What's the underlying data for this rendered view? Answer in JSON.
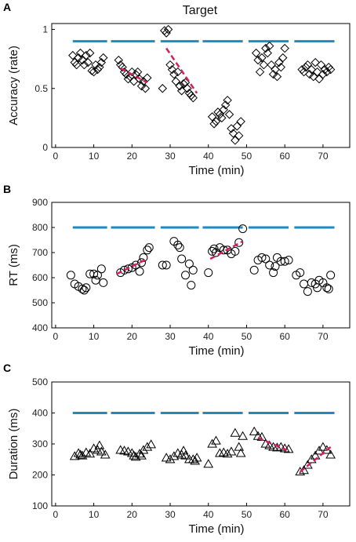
{
  "figure_title": "Target",
  "colors": {
    "reference": "#1f8ac0",
    "trend": "#d81b60",
    "marker": "#000000"
  },
  "chart_data": [
    {
      "panel": "A",
      "type": "scatter",
      "marker": "diamond",
      "xlabel": "Time (min)",
      "ylabel": "Accuracy (rate)",
      "xlim": [
        -1,
        77
      ],
      "ylim": [
        0,
        1.05
      ],
      "xticks": [
        0,
        10,
        20,
        30,
        40,
        50,
        60,
        70
      ],
      "yticks": [
        0,
        0.5,
        1
      ],
      "ytick_labels": [
        "0",
        "0.5",
        "1"
      ],
      "reference_segments": [
        {
          "x": [
            4.5,
            13.5
          ],
          "y": 0.9
        },
        {
          "x": [
            14.5,
            26
          ],
          "y": 0.9
        },
        {
          "x": [
            27.5,
            37.5
          ],
          "y": 0.9
        },
        {
          "x": [
            38.5,
            49
          ],
          "y": 0.9
        },
        {
          "x": [
            50.5,
            61
          ],
          "y": 0.9
        },
        {
          "x": [
            62.5,
            73
          ],
          "y": 0.9
        }
      ],
      "trend_segments": [
        {
          "x": [
            17,
            24
          ],
          "y": [
            0.67,
            0.55
          ]
        },
        {
          "x": [
            29,
            37
          ],
          "y": [
            0.84,
            0.46
          ]
        }
      ],
      "points": [
        [
          4.5,
          0.78
        ],
        [
          5,
          0.72
        ],
        [
          5.5,
          0.7
        ],
        [
          6,
          0.76
        ],
        [
          6.5,
          0.8
        ],
        [
          7,
          0.74
        ],
        [
          7.5,
          0.7
        ],
        [
          8,
          0.78
        ],
        [
          8.5,
          0.72
        ],
        [
          9,
          0.8
        ],
        [
          9.5,
          0.65
        ],
        [
          10,
          0.64
        ],
        [
          10.5,
          0.7
        ],
        [
          11,
          0.66
        ],
        [
          11.5,
          0.68
        ],
        [
          12,
          0.72
        ],
        [
          12.5,
          0.76
        ],
        [
          16.5,
          0.74
        ],
        [
          17,
          0.7
        ],
        [
          17.5,
          0.68
        ],
        [
          18,
          0.64
        ],
        [
          18.5,
          0.62
        ],
        [
          19,
          0.58
        ],
        [
          19.5,
          0.6
        ],
        [
          20,
          0.64
        ],
        [
          20.5,
          0.56
        ],
        [
          21,
          0.62
        ],
        [
          21.5,
          0.64
        ],
        [
          22,
          0.58
        ],
        [
          22.5,
          0.52
        ],
        [
          23,
          0.56
        ],
        [
          23.5,
          0.5
        ],
        [
          24,
          0.59
        ],
        [
          28,
          0.5
        ],
        [
          28.5,
          0.99
        ],
        [
          29,
          0.97
        ],
        [
          29.5,
          1.0
        ],
        [
          30,
          0.7
        ],
        [
          30.5,
          0.66
        ],
        [
          31,
          0.62
        ],
        [
          31.5,
          0.56
        ],
        [
          32,
          0.64
        ],
        [
          32.5,
          0.52
        ],
        [
          33,
          0.48
        ],
        [
          33.5,
          0.54
        ],
        [
          34,
          0.55
        ],
        [
          34.5,
          0.5
        ],
        [
          35,
          0.46
        ],
        [
          35.5,
          0.44
        ],
        [
          36,
          0.42
        ],
        [
          41,
          0.26
        ],
        [
          41.5,
          0.2
        ],
        [
          42,
          0.22
        ],
        [
          42.5,
          0.3
        ],
        [
          43,
          0.28
        ],
        [
          43.5,
          0.25
        ],
        [
          44,
          0.32
        ],
        [
          44.5,
          0.36
        ],
        [
          45,
          0.4
        ],
        [
          45.5,
          0.28
        ],
        [
          46,
          0.16
        ],
        [
          46.5,
          0.12
        ],
        [
          47,
          0.06
        ],
        [
          47.5,
          0.18
        ],
        [
          48,
          0.1
        ],
        [
          48.5,
          0.22
        ],
        [
          52.5,
          0.8
        ],
        [
          53,
          0.74
        ],
        [
          53.5,
          0.64
        ],
        [
          54,
          0.76
        ],
        [
          54.5,
          0.7
        ],
        [
          55,
          0.84
        ],
        [
          55.5,
          0.8
        ],
        [
          56,
          0.86
        ],
        [
          56.5,
          0.7
        ],
        [
          57,
          0.62
        ],
        [
          57.5,
          0.66
        ],
        [
          58,
          0.6
        ],
        [
          58.5,
          0.72
        ],
        [
          59,
          0.68
        ],
        [
          59.5,
          0.76
        ],
        [
          60,
          0.84
        ],
        [
          64.5,
          0.66
        ],
        [
          65,
          0.64
        ],
        [
          65.5,
          0.68
        ],
        [
          66,
          0.7
        ],
        [
          66.5,
          0.62
        ],
        [
          67,
          0.66
        ],
        [
          67.5,
          0.6
        ],
        [
          68,
          0.72
        ],
        [
          68.5,
          0.64
        ],
        [
          69,
          0.58
        ],
        [
          69.5,
          0.7
        ],
        [
          70,
          0.62
        ],
        [
          70.5,
          0.66
        ],
        [
          71,
          0.64
        ],
        [
          71.5,
          0.68
        ],
        [
          72,
          0.66
        ]
      ]
    },
    {
      "panel": "B",
      "type": "scatter",
      "marker": "circle",
      "xlabel": "Time (min)",
      "ylabel": "RT (ms)",
      "xlim": [
        -1,
        77
      ],
      "ylim": [
        400,
        900
      ],
      "xticks": [
        0,
        10,
        20,
        30,
        40,
        50,
        60,
        70
      ],
      "yticks": [
        400,
        500,
        600,
        700,
        800,
        900
      ],
      "ytick_labels": [
        "400",
        "500",
        "600",
        "700",
        "800",
        "900"
      ],
      "reference_segments": [
        {
          "x": [
            4.5,
            13.5
          ],
          "y": 800
        },
        {
          "x": [
            14.5,
            26
          ],
          "y": 800
        },
        {
          "x": [
            27.5,
            37.5
          ],
          "y": 800
        },
        {
          "x": [
            38.5,
            49
          ],
          "y": 800
        },
        {
          "x": [
            50.5,
            61
          ],
          "y": 800
        },
        {
          "x": [
            62.5,
            73
          ],
          "y": 800
        }
      ],
      "trend_segments": [
        {
          "x": [
            16,
            24
          ],
          "y": [
            615,
            675
          ]
        },
        {
          "x": [
            40.5,
            49
          ],
          "y": [
            675,
            745
          ]
        }
      ],
      "points": [
        [
          4,
          610
        ],
        [
          5,
          575
        ],
        [
          6,
          565
        ],
        [
          7,
          555
        ],
        [
          7.5,
          550
        ],
        [
          8,
          560
        ],
        [
          9,
          615
        ],
        [
          10,
          615
        ],
        [
          10.5,
          590
        ],
        [
          11,
          610
        ],
        [
          12,
          635
        ],
        [
          12.5,
          580
        ],
        [
          17,
          620
        ],
        [
          18,
          630
        ],
        [
          19,
          635
        ],
        [
          20,
          640
        ],
        [
          21,
          650
        ],
        [
          22,
          625
        ],
        [
          22.5,
          660
        ],
        [
          23,
          680
        ],
        [
          24,
          710
        ],
        [
          24.5,
          720
        ],
        [
          28,
          650
        ],
        [
          29,
          650
        ],
        [
          31,
          745
        ],
        [
          32,
          730
        ],
        [
          32.5,
          720
        ],
        [
          33,
          675
        ],
        [
          34,
          610
        ],
        [
          35,
          655
        ],
        [
          35.5,
          570
        ],
        [
          36,
          630
        ],
        [
          40,
          620
        ],
        [
          41,
          705
        ],
        [
          41.5,
          715
        ],
        [
          42,
          700
        ],
        [
          43,
          720
        ],
        [
          44,
          710
        ],
        [
          45,
          710
        ],
        [
          46,
          695
        ],
        [
          47,
          705
        ],
        [
          48,
          740
        ],
        [
          49,
          795
        ],
        [
          52,
          630
        ],
        [
          53,
          670
        ],
        [
          54,
          680
        ],
        [
          55,
          675
        ],
        [
          56,
          650
        ],
        [
          57,
          620
        ],
        [
          57.5,
          645
        ],
        [
          58,
          680
        ],
        [
          59,
          665
        ],
        [
          60,
          665
        ],
        [
          61,
          670
        ],
        [
          63,
          610
        ],
        [
          64,
          620
        ],
        [
          65,
          575
        ],
        [
          66,
          545
        ],
        [
          67,
          580
        ],
        [
          68,
          575
        ],
        [
          68.5,
          560
        ],
        [
          69,
          590
        ],
        [
          70,
          580
        ],
        [
          71,
          560
        ],
        [
          71.5,
          555
        ],
        [
          72,
          610
        ]
      ]
    },
    {
      "panel": "C",
      "type": "scatter",
      "marker": "triangle",
      "xlabel": "Time (min)",
      "ylabel": "Duration (ms)",
      "xlim": [
        -1,
        77
      ],
      "ylim": [
        100,
        500
      ],
      "xticks": [
        0,
        10,
        20,
        30,
        40,
        50,
        60,
        70
      ],
      "yticks": [
        100,
        200,
        300,
        400,
        500
      ],
      "ytick_labels": [
        "100",
        "200",
        "300",
        "400",
        "500"
      ],
      "reference_segments": [
        {
          "x": [
            4.5,
            13.5
          ],
          "y": 400
        },
        {
          "x": [
            14.5,
            26
          ],
          "y": 400
        },
        {
          "x": [
            27.5,
            37.5
          ],
          "y": 400
        },
        {
          "x": [
            38.5,
            49
          ],
          "y": 400
        },
        {
          "x": [
            50.5,
            61
          ],
          "y": 400
        },
        {
          "x": [
            62.5,
            73
          ],
          "y": 400
        }
      ],
      "trend_segments": [
        {
          "x": [
            53,
            61
          ],
          "y": [
            320,
            278
          ]
        },
        {
          "x": [
            64,
            72
          ],
          "y": [
            210,
            290
          ]
        }
      ],
      "points": [
        [
          5,
          260
        ],
        [
          6,
          270
        ],
        [
          6.5,
          265
        ],
        [
          7,
          262
        ],
        [
          8,
          272
        ],
        [
          9,
          268
        ],
        [
          10,
          285
        ],
        [
          11,
          280
        ],
        [
          11.5,
          295
        ],
        [
          12,
          275
        ],
        [
          13,
          265
        ],
        [
          17,
          280
        ],
        [
          18,
          278
        ],
        [
          19,
          275
        ],
        [
          20,
          270
        ],
        [
          20.5,
          262
        ],
        [
          21,
          258
        ],
        [
          22,
          268
        ],
        [
          22.5,
          262
        ],
        [
          23,
          280
        ],
        [
          24,
          290
        ],
        [
          25,
          298
        ],
        [
          29,
          255
        ],
        [
          30,
          250
        ],
        [
          31,
          260
        ],
        [
          32,
          270
        ],
        [
          33,
          265
        ],
        [
          33.5,
          278
        ],
        [
          34,
          262
        ],
        [
          35,
          250
        ],
        [
          36,
          250
        ],
        [
          36.5,
          245
        ],
        [
          37,
          255
        ],
        [
          40,
          235
        ],
        [
          41,
          300
        ],
        [
          42,
          310
        ],
        [
          43,
          270
        ],
        [
          44,
          272
        ],
        [
          45,
          268
        ],
        [
          46,
          275
        ],
        [
          47,
          335
        ],
        [
          48,
          290
        ],
        [
          48.5,
          270
        ],
        [
          49,
          325
        ],
        [
          52,
          340
        ],
        [
          53,
          325
        ],
        [
          54,
          322
        ],
        [
          55,
          300
        ],
        [
          56,
          295
        ],
        [
          57,
          290
        ],
        [
          58,
          288
        ],
        [
          59,
          290
        ],
        [
          60,
          285
        ],
        [
          61,
          283
        ],
        [
          64,
          210
        ],
        [
          65,
          215
        ],
        [
          66,
          232
        ],
        [
          67,
          250
        ],
        [
          68,
          262
        ],
        [
          69,
          278
        ],
        [
          70,
          290
        ],
        [
          71,
          280
        ],
        [
          72,
          265
        ]
      ]
    }
  ]
}
